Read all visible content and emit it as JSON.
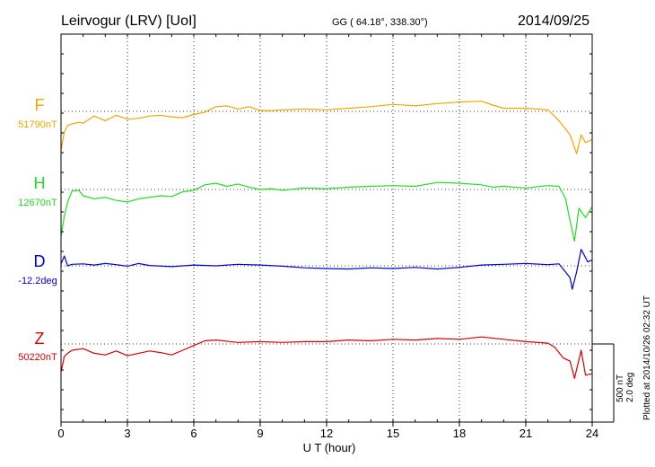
{
  "header": {
    "station": "Leirvogur (LRV)  [UoI]",
    "coords": "GG ( 64.18°, 338.30°)",
    "date": "2014/09/25"
  },
  "chart_data": {
    "type": "line",
    "xlabel": "U T (hour)",
    "xlim": [
      0,
      24
    ],
    "xticks": [
      0,
      3,
      6,
      9,
      12,
      15,
      18,
      21,
      24
    ],
    "grid": "dotted vertical lines every 3 hours; dotted baseline per component",
    "scale_note": "500 nT / 2.0 deg per scale bar",
    "scale_bar": {
      "label_nt": "500 nT",
      "label_deg": "2.0 deg",
      "nt_per_bar": 500,
      "deg_per_bar": 2.0
    },
    "plot_note": "Plotted at 2014/10/26 02:32 UT",
    "series": [
      {
        "name": "F",
        "baseline_label": "51790nT",
        "color": "#f0a800",
        "unit": "nT",
        "baseline": 51790,
        "x": [
          0,
          0.15,
          0.3,
          0.5,
          0.8,
          1,
          1.5,
          2,
          2.5,
          3,
          3.5,
          4,
          4.5,
          5,
          5.5,
          6,
          6.5,
          7,
          7.5,
          8,
          8.5,
          9,
          9.5,
          10,
          11,
          12,
          13,
          14,
          15,
          16,
          17,
          18,
          19,
          19.5,
          20,
          21,
          22,
          22.5,
          23,
          23.3,
          23.5,
          23.7,
          24
        ],
        "values": [
          -250,
          -130,
          -90,
          -80,
          -70,
          -75,
          -30,
          -60,
          -25,
          -50,
          -45,
          -30,
          -25,
          -35,
          -40,
          -20,
          -5,
          30,
          35,
          15,
          30,
          5,
          5,
          10,
          15,
          10,
          20,
          30,
          45,
          35,
          50,
          60,
          65,
          40,
          20,
          20,
          10,
          -60,
          -150,
          -270,
          -150,
          -200,
          -180
        ]
      },
      {
        "name": "H",
        "baseline_label": "12670nT",
        "color": "#22dd22",
        "unit": "nT",
        "baseline": 12670,
        "x": [
          0,
          0.15,
          0.3,
          0.5,
          0.8,
          1,
          1.5,
          2,
          2.5,
          3,
          3.5,
          4,
          4.5,
          5,
          5.5,
          6,
          6.5,
          7,
          7.5,
          8,
          8.5,
          9,
          9.5,
          10,
          11,
          12,
          13,
          14,
          15,
          16,
          17,
          18,
          19,
          19.5,
          20,
          21,
          22,
          22.5,
          22.8,
          23,
          23.2,
          23.4,
          23.7,
          24
        ],
        "values": [
          -300,
          -170,
          -80,
          -10,
          -5,
          -40,
          -60,
          -50,
          -70,
          -80,
          -60,
          -50,
          -40,
          -45,
          -15,
          -5,
          30,
          40,
          20,
          35,
          15,
          0,
          5,
          -5,
          10,
          5,
          15,
          20,
          25,
          20,
          45,
          40,
          30,
          15,
          20,
          10,
          25,
          20,
          -60,
          -200,
          -330,
          -120,
          -180,
          -110
        ]
      },
      {
        "name": "D",
        "baseline_label": "-12.2deg",
        "color": "#0000dd",
        "unit": "deg",
        "baseline": -12.2,
        "x": [
          0,
          0.15,
          0.3,
          0.5,
          1,
          1.5,
          2,
          2.5,
          3,
          3.5,
          4,
          5,
          6,
          7,
          8,
          9,
          10,
          11,
          12,
          13,
          14,
          15,
          16,
          17,
          18,
          19,
          20,
          21,
          22,
          22.5,
          23,
          23.1,
          23.3,
          23.5,
          23.8,
          24
        ],
        "values": [
          0.05,
          0.25,
          0.0,
          0.04,
          0.05,
          0.02,
          0.06,
          0.03,
          -0.01,
          0.06,
          0.01,
          -0.02,
          0.02,
          0.0,
          0.04,
          0.02,
          -0.01,
          -0.05,
          -0.07,
          -0.08,
          -0.05,
          -0.07,
          -0.04,
          -0.08,
          -0.04,
          0.02,
          0.04,
          0.06,
          0.03,
          0.05,
          -0.3,
          -0.6,
          -0.15,
          0.42,
          0.1,
          0.15
        ]
      },
      {
        "name": "Z",
        "baseline_label": "50220nT",
        "color": "#dd0000",
        "unit": "nT",
        "baseline": 50220,
        "x": [
          0,
          0.15,
          0.3,
          0.5,
          1,
          1.5,
          2,
          2.5,
          3,
          3.5,
          4,
          4.5,
          5,
          5.5,
          6,
          6.5,
          7,
          8,
          9,
          10,
          11,
          12,
          13,
          14,
          15,
          16,
          17,
          18,
          19,
          20,
          21,
          22,
          22.3,
          22.7,
          23,
          23.2,
          23.5,
          23.7,
          24
        ],
        "values": [
          -180,
          -80,
          -60,
          -40,
          -30,
          -60,
          -70,
          -45,
          -75,
          -60,
          -45,
          -55,
          -70,
          -40,
          -10,
          20,
          25,
          10,
          15,
          10,
          15,
          15,
          25,
          20,
          30,
          25,
          35,
          30,
          45,
          30,
          15,
          5,
          -20,
          -90,
          -110,
          -220,
          -40,
          -200,
          -190
        ]
      }
    ]
  }
}
